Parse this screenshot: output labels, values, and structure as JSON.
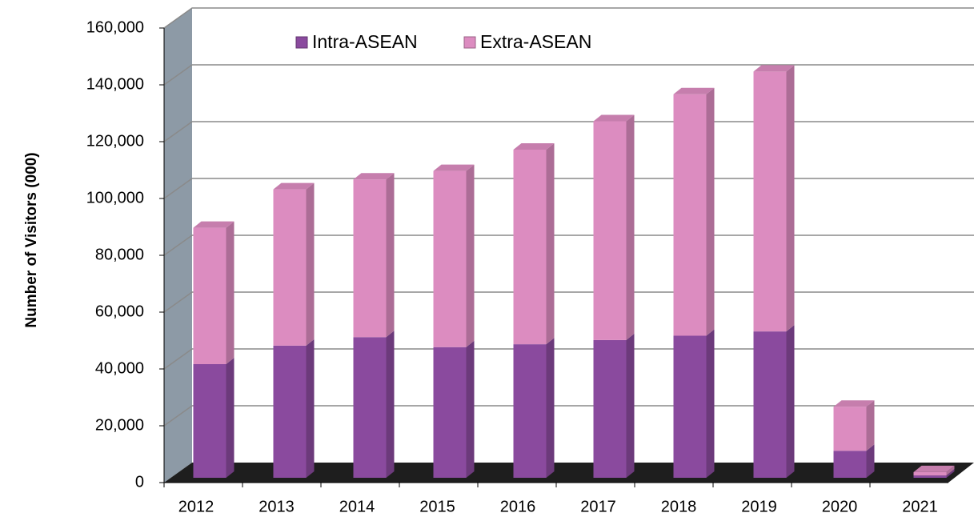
{
  "chart_data": {
    "type": "bar3d_stacked",
    "ylabel": "Number of Visitors (000)",
    "categories": [
      "2012",
      "2013",
      "2014",
      "2015",
      "2016",
      "2017",
      "2018",
      "2019",
      "2020",
      "2021"
    ],
    "series": [
      {
        "name": "Intra-ASEAN",
        "color": "#8a4a9e",
        "values": [
          40000,
          46500,
          49500,
          46000,
          47000,
          48500,
          50000,
          51500,
          9500,
          800
        ]
      },
      {
        "name": "Extra-ASEAN",
        "color": "#dc8cc0",
        "values": [
          48000,
          55000,
          55500,
          62000,
          68500,
          77000,
          85000,
          91500,
          15500,
          1200
        ]
      }
    ],
    "ylim": [
      0,
      160000
    ],
    "yticks": [
      0,
      {
        "value": 20000,
        "label": "20,000"
      },
      {
        "value": 40000,
        "label": "40,000"
      },
      {
        "value": 60000,
        "label": "60,000"
      },
      {
        "value": 80000,
        "label": "80,000"
      },
      {
        "value": 100000,
        "label": "100,000"
      },
      {
        "value": 120000,
        "label": "120,000"
      },
      {
        "value": 140000,
        "label": "140,000"
      },
      {
        "value": 160000,
        "label": "160,000"
      }
    ],
    "grid": true,
    "legend": "top"
  }
}
